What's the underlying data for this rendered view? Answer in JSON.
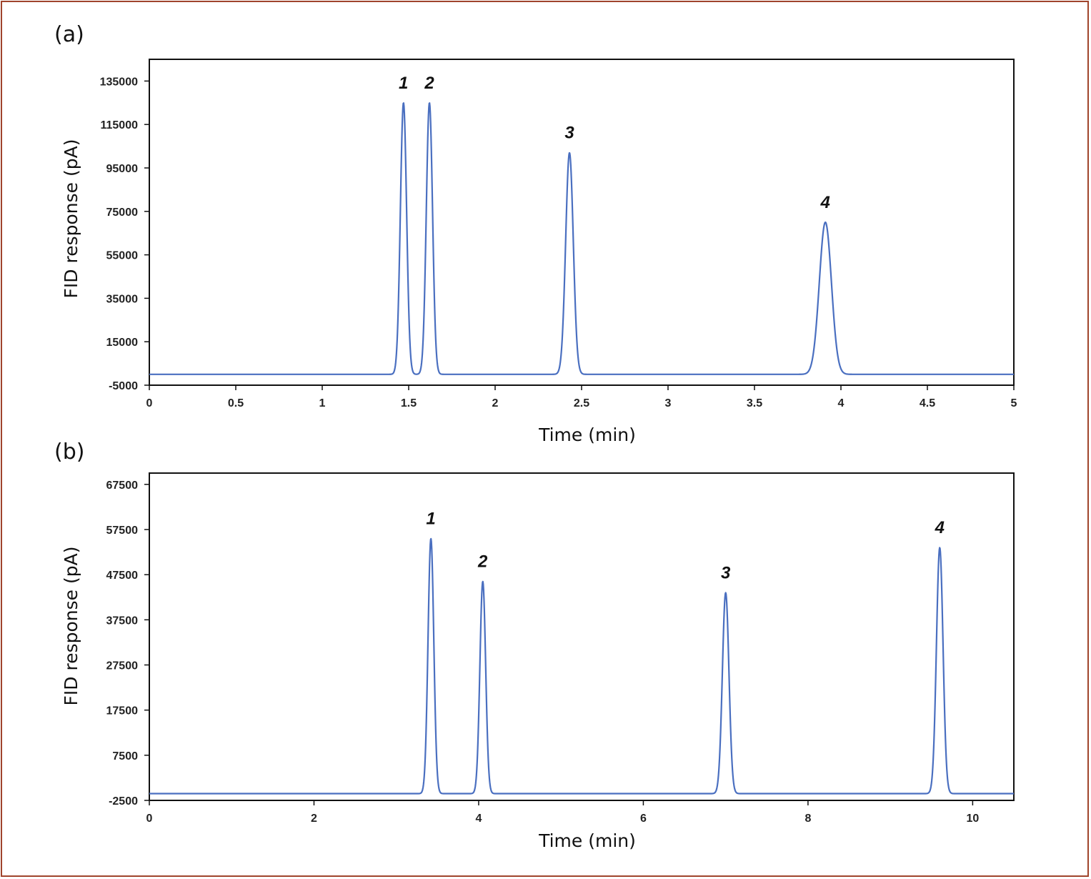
{
  "colors": {
    "frame": "#a0442c",
    "trace": "#4a6fc0"
  },
  "chart_data": [
    {
      "type": "line",
      "panel_label": "(a)",
      "xlabel": "Time (min)",
      "ylabel": "FID response (pA)",
      "xlim": [
        0,
        5
      ],
      "ylim": [
        -5000,
        145000
      ],
      "xticks": [
        0,
        0.5,
        1,
        1.5,
        2,
        2.5,
        3,
        3.5,
        4,
        4.5,
        5
      ],
      "xtick_labels": [
        "0",
        "0.5",
        "1",
        "1.5",
        "2",
        "2.5",
        "3",
        "3.5",
        "4",
        "4.5",
        "5"
      ],
      "yticks": [
        -5000,
        15000,
        35000,
        55000,
        75000,
        95000,
        115000,
        135000
      ],
      "ytick_labels": [
        "-5000",
        "15000",
        "35000",
        "55000",
        "75000",
        "95000",
        "115000",
        "135000"
      ],
      "baseline": 0,
      "peaks": [
        {
          "label": "1",
          "time": 1.47,
          "height": 125000,
          "width": 0.018
        },
        {
          "label": "2",
          "time": 1.62,
          "height": 125000,
          "width": 0.018
        },
        {
          "label": "3",
          "time": 2.43,
          "height": 102000,
          "width": 0.022
        },
        {
          "label": "4",
          "time": 3.91,
          "height": 70000,
          "width": 0.035
        }
      ],
      "grid": false,
      "legend": "none"
    },
    {
      "type": "line",
      "panel_label": "(b)",
      "xlabel": "Time (min)",
      "ylabel": "FID response (pA)",
      "xlim": [
        0,
        10.5
      ],
      "ylim": [
        -2500,
        70000
      ],
      "xticks": [
        0,
        2,
        4,
        6,
        8,
        10
      ],
      "xtick_labels": [
        "0",
        "2",
        "4",
        "6",
        "8",
        "10"
      ],
      "yticks": [
        -2500,
        7500,
        17500,
        27500,
        37500,
        47500,
        57500,
        67500
      ],
      "ytick_labels": [
        "-2500",
        "7500",
        "17500",
        "27500",
        "37500",
        "47500",
        "57500",
        "67500"
      ],
      "baseline": -1000,
      "peaks": [
        {
          "label": "1",
          "time": 3.42,
          "height": 55500,
          "width": 0.035
        },
        {
          "label": "2",
          "time": 4.05,
          "height": 46000,
          "width": 0.035
        },
        {
          "label": "3",
          "time": 7.0,
          "height": 43500,
          "width": 0.04
        },
        {
          "label": "4",
          "time": 9.6,
          "height": 53500,
          "width": 0.04
        }
      ],
      "grid": false,
      "legend": "none"
    }
  ]
}
